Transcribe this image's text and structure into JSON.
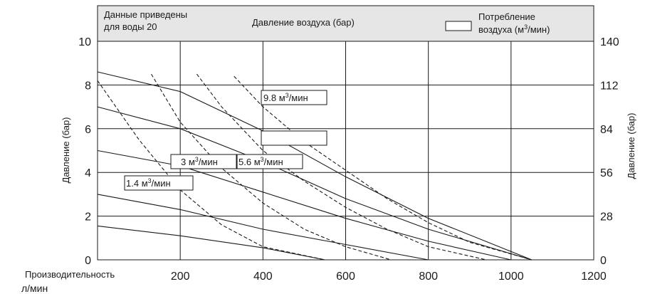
{
  "chart_data": {
    "type": "line",
    "xlabel": "Производительность",
    "xunit": "л/мин",
    "ylabel_left": "Давление (бар)",
    "ylabel_right": "Давление (бар)",
    "xlim": [
      0,
      1200
    ],
    "ylim_left": [
      0,
      10
    ],
    "ylim_right": [
      0,
      140
    ],
    "x_ticks": [
      200,
      400,
      600,
      800,
      1000,
      1200
    ],
    "y_ticks_left": [
      0,
      2,
      4,
      6,
      8,
      10
    ],
    "y_ticks_right": [
      0,
      28,
      56,
      84,
      112,
      140
    ],
    "grid": true,
    "header": {
      "left_line1": "Данные приведены",
      "left_line2": "для воды 20",
      "center": "Давление воздуха (бар)",
      "right_line1": "Потребление",
      "right_line2_pre": "воздуха (м",
      "right_line2_sup": "3",
      "right_line2_post": "/мин)"
    },
    "series": [
      {
        "style": "solid",
        "points": [
          [
            0,
            8.6
          ],
          [
            200,
            7.7
          ],
          [
            400,
            5.9
          ],
          [
            600,
            3.8
          ],
          [
            800,
            1.9
          ],
          [
            1050,
            0
          ]
        ]
      },
      {
        "style": "solid",
        "points": [
          [
            0,
            7.0
          ],
          [
            200,
            6.0
          ],
          [
            400,
            4.5
          ],
          [
            600,
            2.8
          ],
          [
            800,
            1.4
          ],
          [
            1050,
            0
          ]
        ]
      },
      {
        "style": "solid",
        "points": [
          [
            0,
            5.0
          ],
          [
            200,
            4.3
          ],
          [
            400,
            3.1
          ],
          [
            600,
            1.9
          ],
          [
            800,
            0.85
          ],
          [
            1000,
            0
          ]
        ]
      },
      {
        "style": "solid",
        "points": [
          [
            0,
            3.0
          ],
          [
            200,
            2.3
          ],
          [
            400,
            1.4
          ],
          [
            600,
            0.7
          ],
          [
            800,
            0
          ]
        ]
      },
      {
        "style": "solid",
        "points": [
          [
            0,
            1.55
          ],
          [
            200,
            1.1
          ],
          [
            400,
            0.55
          ],
          [
            550,
            0
          ]
        ]
      },
      {
        "style": "dashed",
        "points": [
          [
            0,
            8.2
          ],
          [
            100,
            5.5
          ],
          [
            200,
            3.2
          ],
          [
            300,
            1.6
          ],
          [
            400,
            0.6
          ],
          [
            550,
            0
          ]
        ]
      },
      {
        "style": "dashed",
        "points": [
          [
            130,
            8.5
          ],
          [
            200,
            6.3
          ],
          [
            300,
            4.2
          ],
          [
            400,
            2.6
          ],
          [
            500,
            1.4
          ],
          [
            600,
            0.6
          ],
          [
            710,
            0
          ]
        ]
      },
      {
        "style": "dashed",
        "points": [
          [
            240,
            8.5
          ],
          [
            300,
            7.0
          ],
          [
            400,
            5.0
          ],
          [
            500,
            3.6
          ],
          [
            600,
            2.4
          ],
          [
            700,
            1.4
          ],
          [
            800,
            0.6
          ],
          [
            940,
            0
          ]
        ]
      },
      {
        "style": "dashed",
        "points": [
          [
            330,
            8.4
          ],
          [
            400,
            7.0
          ],
          [
            500,
            5.4
          ],
          [
            600,
            4.1
          ],
          [
            700,
            2.8
          ],
          [
            800,
            1.7
          ],
          [
            900,
            0.8
          ],
          [
            1050,
            0
          ]
        ]
      }
    ],
    "annotations": [
      {
        "label": "9.8",
        "unit_pre": " м",
        "unit_sup": "3",
        "unit_post": "/мин"
      },
      {
        "label": "",
        "unit_pre": "",
        "unit_sup": "",
        "unit_post": ""
      },
      {
        "label": "3",
        "unit_pre": " м",
        "unit_sup": "3",
        "unit_post": "/мин"
      },
      {
        "label": "5.6",
        "unit_pre": " м",
        "unit_sup": "3",
        "unit_post": "/мин"
      },
      {
        "label": "1.4",
        "unit_pre": " м",
        "unit_sup": "3",
        "unit_post": "/мин"
      }
    ]
  }
}
